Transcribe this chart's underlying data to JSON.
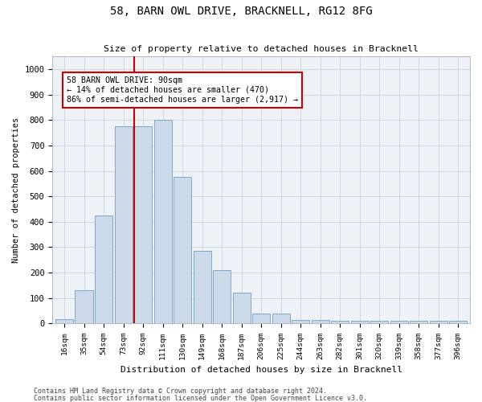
{
  "title": "58, BARN OWL DRIVE, BRACKNELL, RG12 8FG",
  "subtitle": "Size of property relative to detached houses in Bracknell",
  "xlabel": "Distribution of detached houses by size in Bracknell",
  "ylabel": "Number of detached properties",
  "bar_labels": [
    "16sqm",
    "35sqm",
    "54sqm",
    "73sqm",
    "92sqm",
    "111sqm",
    "130sqm",
    "149sqm",
    "168sqm",
    "187sqm",
    "206sqm",
    "225sqm",
    "244sqm",
    "263sqm",
    "282sqm",
    "301sqm",
    "320sqm",
    "339sqm",
    "358sqm",
    "377sqm",
    "396sqm"
  ],
  "bar_values": [
    18,
    130,
    425,
    775,
    775,
    800,
    575,
    285,
    210,
    120,
    40,
    40,
    15,
    14,
    12,
    10,
    10,
    10,
    10,
    10,
    10
  ],
  "bar_color": "#ccd9e8",
  "bar_edgecolor": "#7aaac8",
  "vline_color": "#cc0000",
  "vline_x_index": 4,
  "annotation_text": "58 BARN OWL DRIVE: 90sqm\n← 14% of detached houses are smaller (470)\n86% of semi-detached houses are larger (2,917) →",
  "annotation_box_color": "#cc0000",
  "ylim": [
    0,
    1050
  ],
  "yticks": [
    0,
    100,
    200,
    300,
    400,
    500,
    600,
    700,
    800,
    900,
    1000
  ],
  "grid_color": "#c8d4e0",
  "bg_color": "#eef2f7",
  "footer1": "Contains HM Land Registry data © Crown copyright and database right 2024.",
  "footer2": "Contains public sector information licensed under the Open Government Licence v3.0."
}
